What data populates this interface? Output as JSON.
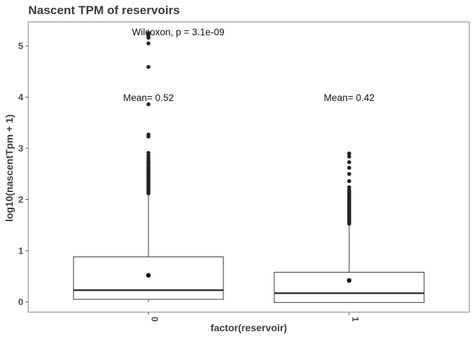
{
  "chart_data": {
    "type": "box",
    "title": "Nascent TPM of reservoirs",
    "xlabel": "factor(reservoir)",
    "ylabel": "log10(nascentTpm + 1)",
    "ylim": [
      -0.2,
      5.47
    ],
    "yticks": [
      0,
      1,
      2,
      3,
      4,
      5
    ],
    "grid": false,
    "colors": {
      "box": "#333333",
      "point": "#222222",
      "panel_border": "#7f7f7f"
    },
    "categories": [
      "0",
      "1"
    ],
    "boxes": [
      {
        "category": "0",
        "q1": 0.05,
        "median": 0.23,
        "q3": 0.88,
        "whisker_low": 0.0,
        "whisker_high": 2.1,
        "mean": 0.52,
        "outliers": [
          2.12,
          2.15,
          2.18,
          2.21,
          2.24,
          2.27,
          2.3,
          2.33,
          2.36,
          2.39,
          2.42,
          2.45,
          2.48,
          2.51,
          2.54,
          2.57,
          2.6,
          2.63,
          2.66,
          2.7,
          2.73,
          2.77,
          2.81,
          2.86,
          2.91,
          3.23,
          3.27,
          3.86,
          4.59,
          5.05,
          5.16,
          5.2,
          5.25
        ]
      },
      {
        "category": "1",
        "q1": -0.01,
        "median": 0.17,
        "q3": 0.58,
        "whisker_low": -0.01,
        "whisker_high": 1.52,
        "mean": 0.42,
        "outliers": [
          1.53,
          1.56,
          1.59,
          1.62,
          1.65,
          1.68,
          1.71,
          1.74,
          1.77,
          1.8,
          1.83,
          1.86,
          1.89,
          1.92,
          1.95,
          1.98,
          2.01,
          2.04,
          2.07,
          2.1,
          2.13,
          2.16,
          2.19,
          2.24,
          2.36,
          2.5,
          2.62,
          2.73,
          2.84,
          2.9
        ]
      }
    ],
    "annotations": {
      "test": "Wilcoxon, p = 3.1e-09",
      "means": [
        "Mean= 0.52",
        "Mean= 0.42"
      ]
    }
  }
}
